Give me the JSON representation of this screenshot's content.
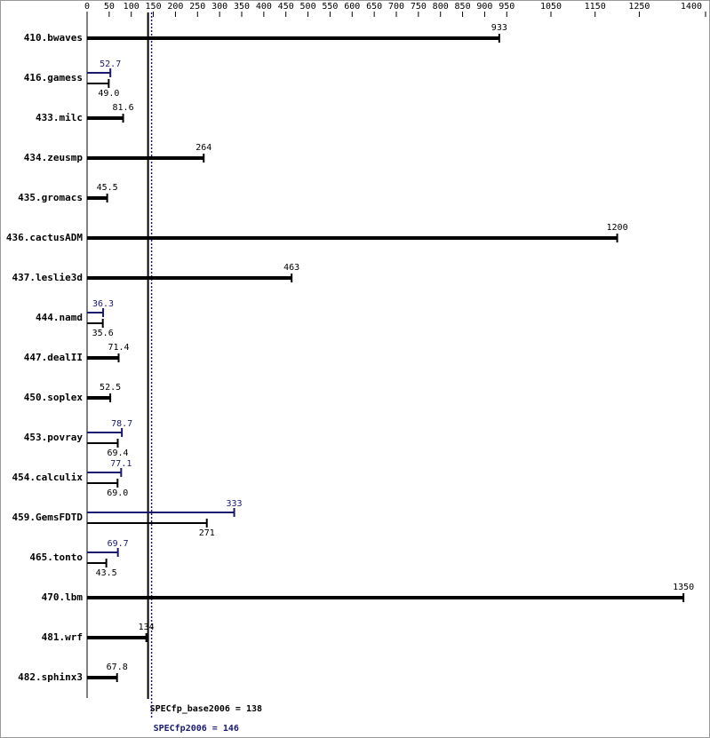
{
  "chart_data": {
    "type": "bar",
    "orientation": "horizontal",
    "categories": [
      "410.bwaves",
      "416.gamess",
      "433.milc",
      "434.zeusmp",
      "435.gromacs",
      "436.cactusADM",
      "437.leslie3d",
      "444.namd",
      "447.dealII",
      "450.soplex",
      "453.povray",
      "454.calculix",
      "459.GemsFDTD",
      "465.tonto",
      "470.lbm",
      "481.wrf",
      "482.sphinx3"
    ],
    "series": [
      {
        "color": "#000000",
        "values": [
          933,
          49.0,
          81.6,
          264,
          45.5,
          1200,
          463,
          35.6,
          71.4,
          52.5,
          69.4,
          69.0,
          271,
          43.5,
          1350,
          134,
          67.8
        ],
        "value_labels": [
          "933",
          "49.0",
          "81.6",
          "264",
          "45.5",
          "1200",
          "463",
          "35.6",
          "71.4",
          "52.5",
          "69.4",
          "69.0",
          "271",
          "43.5",
          "1350",
          "134",
          "67.8"
        ]
      },
      {
        "color": "#191970",
        "values": [
          null,
          52.7,
          null,
          null,
          null,
          null,
          null,
          36.3,
          null,
          null,
          78.7,
          77.1,
          333,
          69.7,
          null,
          null,
          null
        ],
        "value_labels": [
          null,
          "52.7",
          null,
          null,
          null,
          null,
          null,
          "36.3",
          null,
          null,
          "78.7",
          "77.1",
          "333",
          "69.7",
          null,
          null,
          null
        ]
      }
    ],
    "xlim": [
      0,
      1400
    ],
    "xticks": [
      0,
      50,
      100,
      150,
      200,
      250,
      300,
      350,
      400,
      450,
      500,
      550,
      600,
      650,
      700,
      750,
      800,
      850,
      900,
      950,
      1050,
      1150,
      1250,
      1400
    ],
    "reference_lines": [
      {
        "value": 138,
        "label": "SPECfp_base2006 = 138",
        "color": "#000000"
      },
      {
        "value": 146,
        "label": "SPECfp2006 = 146",
        "color": "#191970"
      }
    ]
  }
}
